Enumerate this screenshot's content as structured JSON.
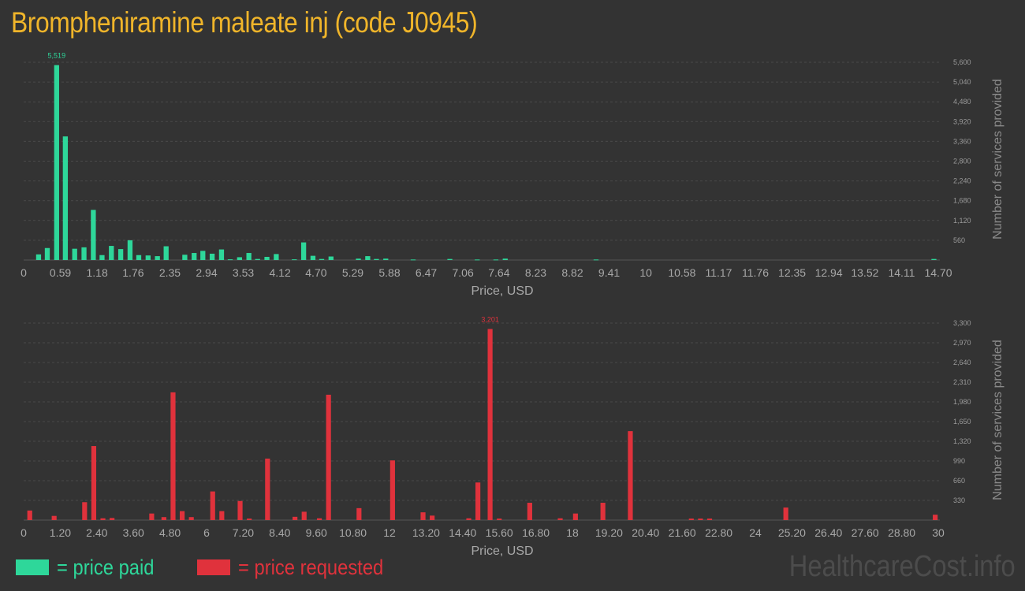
{
  "title": "Brompheniramine maleate inj (code J0945)",
  "legend": {
    "paid": {
      "label": "= price paid",
      "color": "#2ed79a"
    },
    "requested": {
      "label": "= price requested",
      "color": "#e0323c"
    }
  },
  "watermark": "HealthcareCost.info",
  "chart_data": [
    {
      "type": "bar",
      "title": "",
      "xlabel": "Price, USD",
      "ylabel": "Number of services provided",
      "color": "#2ed79a",
      "xlim": [
        0,
        14.7
      ],
      "ylim": [
        0,
        5600
      ],
      "xticks": [
        {
          "value": 0,
          "label": "0"
        },
        {
          "value": 0.59,
          "label": "0.59"
        },
        {
          "value": 1.18,
          "label": "1.18"
        },
        {
          "value": 1.76,
          "label": "1.76"
        },
        {
          "value": 2.35,
          "label": "2.35"
        },
        {
          "value": 2.94,
          "label": "2.94"
        },
        {
          "value": 3.53,
          "label": "3.53"
        },
        {
          "value": 4.12,
          "label": "4.12"
        },
        {
          "value": 4.7,
          "label": "4.70"
        },
        {
          "value": 5.29,
          "label": "5.29"
        },
        {
          "value": 5.88,
          "label": "5.88"
        },
        {
          "value": 6.47,
          "label": "6.47"
        },
        {
          "value": 7.06,
          "label": "7.06"
        },
        {
          "value": 7.64,
          "label": "7.64"
        },
        {
          "value": 8.23,
          "label": "8.23"
        },
        {
          "value": 8.82,
          "label": "8.82"
        },
        {
          "value": 9.41,
          "label": "9.41"
        },
        {
          "value": 10,
          "label": "10"
        },
        {
          "value": 10.58,
          "label": "10.58"
        },
        {
          "value": 11.17,
          "label": "11.17"
        },
        {
          "value": 11.76,
          "label": "11.76"
        },
        {
          "value": 12.35,
          "label": "12.35"
        },
        {
          "value": 12.94,
          "label": "12.94"
        },
        {
          "value": 13.52,
          "label": "13.52"
        },
        {
          "value": 14.11,
          "label": "14.11"
        },
        {
          "value": 14.7,
          "label": "14.70"
        }
      ],
      "yticks": [
        {
          "value": 560,
          "label": "560"
        },
        {
          "value": 1120,
          "label": "1,120"
        },
        {
          "value": 1680,
          "label": "1,680"
        },
        {
          "value": 2240,
          "label": "2,240"
        },
        {
          "value": 2800,
          "label": "2,800"
        },
        {
          "value": 3360,
          "label": "3,360"
        },
        {
          "value": 3920,
          "label": "3,920"
        },
        {
          "value": 4480,
          "label": "4,480"
        },
        {
          "value": 5040,
          "label": "5,040"
        },
        {
          "value": 5600,
          "label": "5,600"
        }
      ],
      "bar_width": 0.1,
      "peak": {
        "x": 0.53,
        "value": 5519,
        "label": "5,519"
      },
      "points": [
        {
          "x": 0.24,
          "y": 160
        },
        {
          "x": 0.38,
          "y": 340
        },
        {
          "x": 0.53,
          "y": 5519
        },
        {
          "x": 0.67,
          "y": 3500
        },
        {
          "x": 0.82,
          "y": 320
        },
        {
          "x": 0.97,
          "y": 360
        },
        {
          "x": 1.12,
          "y": 1420
        },
        {
          "x": 1.26,
          "y": 140
        },
        {
          "x": 1.41,
          "y": 400
        },
        {
          "x": 1.56,
          "y": 310
        },
        {
          "x": 1.71,
          "y": 560
        },
        {
          "x": 1.85,
          "y": 140
        },
        {
          "x": 2.0,
          "y": 130
        },
        {
          "x": 2.15,
          "y": 110
        },
        {
          "x": 2.29,
          "y": 390
        },
        {
          "x": 2.59,
          "y": 150
        },
        {
          "x": 2.74,
          "y": 200
        },
        {
          "x": 2.88,
          "y": 260
        },
        {
          "x": 3.03,
          "y": 180
        },
        {
          "x": 3.18,
          "y": 300
        },
        {
          "x": 3.32,
          "y": 20
        },
        {
          "x": 3.47,
          "y": 80
        },
        {
          "x": 3.62,
          "y": 200
        },
        {
          "x": 3.76,
          "y": 30
        },
        {
          "x": 3.91,
          "y": 90
        },
        {
          "x": 4.06,
          "y": 170
        },
        {
          "x": 4.35,
          "y": 20
        },
        {
          "x": 4.5,
          "y": 500
        },
        {
          "x": 4.65,
          "y": 120
        },
        {
          "x": 4.79,
          "y": 30
        },
        {
          "x": 4.94,
          "y": 100
        },
        {
          "x": 5.38,
          "y": 40
        },
        {
          "x": 5.53,
          "y": 110
        },
        {
          "x": 5.67,
          "y": 30
        },
        {
          "x": 5.82,
          "y": 40
        },
        {
          "x": 6.26,
          "y": 15
        },
        {
          "x": 6.85,
          "y": 30
        },
        {
          "x": 7.29,
          "y": 15
        },
        {
          "x": 7.59,
          "y": 15
        },
        {
          "x": 7.74,
          "y": 40
        },
        {
          "x": 9.2,
          "y": 15
        },
        {
          "x": 14.63,
          "y": 30
        }
      ]
    },
    {
      "type": "bar",
      "title": "",
      "xlabel": "Price, USD",
      "ylabel": "Number of services provided",
      "color": "#e0323c",
      "xlim": [
        0,
        30
      ],
      "ylim": [
        0,
        3300
      ],
      "xticks": [
        {
          "value": 0,
          "label": "0"
        },
        {
          "value": 1.2,
          "label": "1.20"
        },
        {
          "value": 2.4,
          "label": "2.40"
        },
        {
          "value": 3.6,
          "label": "3.60"
        },
        {
          "value": 4.8,
          "label": "4.80"
        },
        {
          "value": 6,
          "label": "6"
        },
        {
          "value": 7.2,
          "label": "7.20"
        },
        {
          "value": 8.4,
          "label": "8.40"
        },
        {
          "value": 9.6,
          "label": "9.60"
        },
        {
          "value": 10.8,
          "label": "10.80"
        },
        {
          "value": 12,
          "label": "12"
        },
        {
          "value": 13.2,
          "label": "13.20"
        },
        {
          "value": 14.4,
          "label": "14.40"
        },
        {
          "value": 15.6,
          "label": "15.60"
        },
        {
          "value": 16.8,
          "label": "16.80"
        },
        {
          "value": 18,
          "label": "18"
        },
        {
          "value": 19.2,
          "label": "19.20"
        },
        {
          "value": 20.4,
          "label": "20.40"
        },
        {
          "value": 21.6,
          "label": "21.60"
        },
        {
          "value": 22.8,
          "label": "22.80"
        },
        {
          "value": 24,
          "label": "24"
        },
        {
          "value": 25.2,
          "label": "25.20"
        },
        {
          "value": 26.4,
          "label": "26.40"
        },
        {
          "value": 27.6,
          "label": "27.60"
        },
        {
          "value": 28.8,
          "label": "28.80"
        },
        {
          "value": 30,
          "label": "30"
        }
      ],
      "yticks": [
        {
          "value": 330,
          "label": "330"
        },
        {
          "value": 660,
          "label": "660"
        },
        {
          "value": 990,
          "label": "990"
        },
        {
          "value": 1320,
          "label": "1,320"
        },
        {
          "value": 1650,
          "label": "1,650"
        },
        {
          "value": 1980,
          "label": "1,980"
        },
        {
          "value": 2310,
          "label": "2,310"
        },
        {
          "value": 2640,
          "label": "2,640"
        },
        {
          "value": 2970,
          "label": "2,970"
        },
        {
          "value": 3300,
          "label": "3,300"
        }
      ],
      "bar_width": 0.2,
      "peak": {
        "x": 15.3,
        "value": 3201,
        "label": "3,201"
      },
      "points": [
        {
          "x": 0.2,
          "y": 160
        },
        {
          "x": 1.0,
          "y": 70
        },
        {
          "x": 2.0,
          "y": 300
        },
        {
          "x": 2.3,
          "y": 1240
        },
        {
          "x": 2.6,
          "y": 30
        },
        {
          "x": 2.9,
          "y": 35
        },
        {
          "x": 4.2,
          "y": 110
        },
        {
          "x": 4.6,
          "y": 50
        },
        {
          "x": 4.9,
          "y": 2140
        },
        {
          "x": 5.2,
          "y": 150
        },
        {
          "x": 5.5,
          "y": 50
        },
        {
          "x": 6.2,
          "y": 480
        },
        {
          "x": 6.5,
          "y": 150
        },
        {
          "x": 7.1,
          "y": 320
        },
        {
          "x": 7.4,
          "y": 25
        },
        {
          "x": 8.0,
          "y": 1030
        },
        {
          "x": 8.9,
          "y": 55
        },
        {
          "x": 9.2,
          "y": 140
        },
        {
          "x": 9.7,
          "y": 30
        },
        {
          "x": 10.0,
          "y": 2100
        },
        {
          "x": 11.0,
          "y": 200
        },
        {
          "x": 12.1,
          "y": 1000
        },
        {
          "x": 13.1,
          "y": 130
        },
        {
          "x": 13.4,
          "y": 75
        },
        {
          "x": 14.6,
          "y": 30
        },
        {
          "x": 14.9,
          "y": 630
        },
        {
          "x": 15.3,
          "y": 3201
        },
        {
          "x": 15.6,
          "y": 25
        },
        {
          "x": 16.6,
          "y": 290
        },
        {
          "x": 17.6,
          "y": 30
        },
        {
          "x": 18.1,
          "y": 110
        },
        {
          "x": 19.0,
          "y": 290
        },
        {
          "x": 19.9,
          "y": 1490
        },
        {
          "x": 21.9,
          "y": 25
        },
        {
          "x": 22.2,
          "y": 25
        },
        {
          "x": 22.5,
          "y": 25
        },
        {
          "x": 25.0,
          "y": 210
        },
        {
          "x": 29.9,
          "y": 90
        }
      ]
    }
  ]
}
